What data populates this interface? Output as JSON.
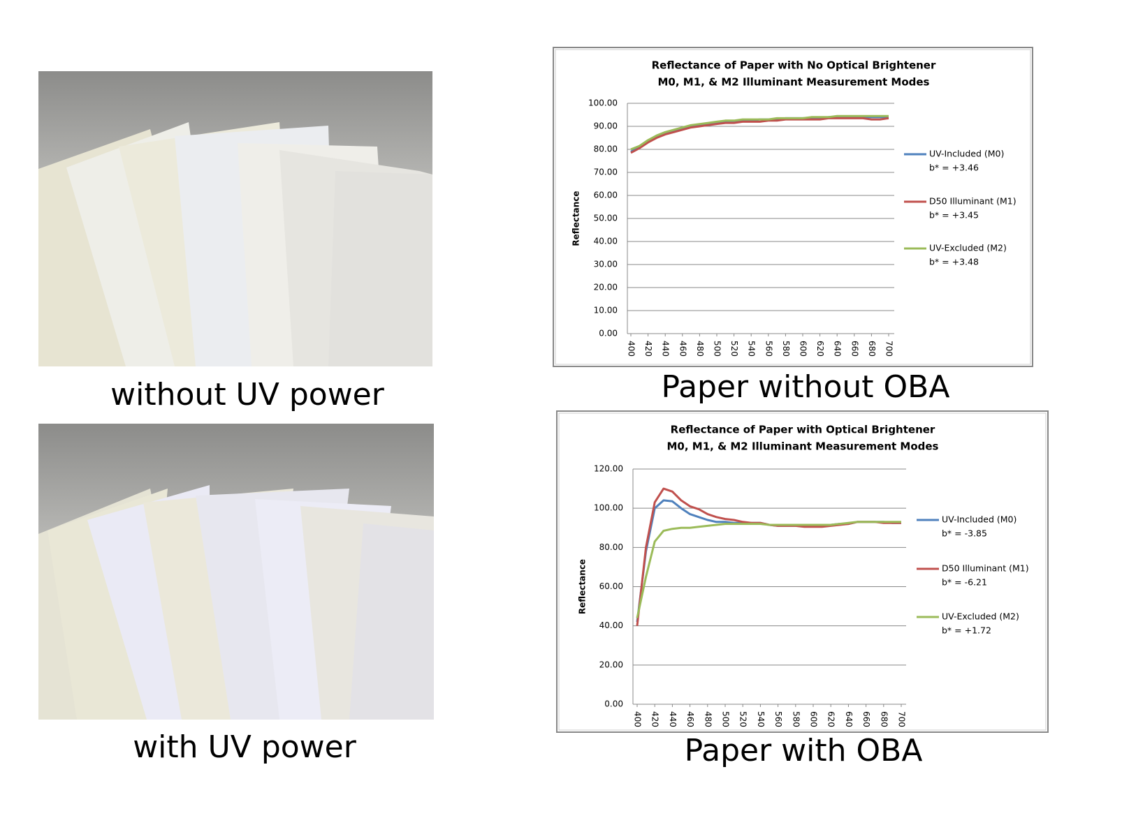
{
  "photos": [
    {
      "caption": "without UV power"
    },
    {
      "caption": "with UV power"
    }
  ],
  "chart_data": [
    {
      "type": "line",
      "title": "Reflectance  of Paper with No  Optical Brightener",
      "subtitle": "M0, M1, & M2 Illuminant Measurement Modes",
      "y_label": "Reflectance",
      "caption": "Paper without OBA",
      "x": [
        400,
        410,
        420,
        430,
        440,
        450,
        460,
        470,
        480,
        490,
        500,
        510,
        520,
        530,
        540,
        550,
        560,
        570,
        580,
        590,
        600,
        610,
        620,
        630,
        640,
        650,
        660,
        670,
        680,
        690,
        700
      ],
      "xlim": [
        400,
        700
      ],
      "xticks": [
        400,
        420,
        440,
        460,
        480,
        500,
        520,
        540,
        560,
        580,
        600,
        620,
        640,
        660,
        680,
        700
      ],
      "ylim": [
        0,
        100
      ],
      "yticks": [
        {
          "value": 0,
          "label": "0.00"
        },
        {
          "value": 10,
          "label": "10.00"
        },
        {
          "value": 20,
          "label": "20.00"
        },
        {
          "value": 30,
          "label": "30.00"
        },
        {
          "value": 40,
          "label": "40.00"
        },
        {
          "value": 50,
          "label": "50.00"
        },
        {
          "value": 60,
          "label": "60.00"
        },
        {
          "value": 70,
          "label": "70.00"
        },
        {
          "value": 80,
          "label": "80.00"
        },
        {
          "value": 90,
          "label": "90.00"
        },
        {
          "value": 100,
          "label": "100.00"
        }
      ],
      "grid": true,
      "legend": "right",
      "series": [
        {
          "name": "UV-Included (M0)",
          "b_star": "b* = +3.46",
          "color": "#4f81bd",
          "values": [
            79,
            81,
            83.5,
            85.5,
            87,
            88,
            89,
            90,
            90.5,
            91,
            91.5,
            92,
            92,
            92.5,
            92.5,
            93,
            93,
            93,
            93.5,
            93.5,
            93.5,
            93.5,
            93.5,
            94,
            94,
            94,
            94,
            94,
            94,
            94,
            94
          ]
        },
        {
          "name": "D50 Illuminant (M1)",
          "b_star": "b* = +3.45",
          "color": "#c0504d",
          "values": [
            78.5,
            80.5,
            83,
            85,
            86.5,
            87.5,
            88.5,
            89.5,
            90,
            90.5,
            91,
            91.5,
            91.5,
            92,
            92,
            92,
            92.5,
            92.5,
            93,
            93,
            93,
            93,
            93,
            93.5,
            93.5,
            93.5,
            93.5,
            93.5,
            93,
            93,
            93.5
          ]
        },
        {
          "name": "UV-Excluded (M2)",
          "b_star": "b* = +3.48",
          "color": "#9bbb59",
          "values": [
            80,
            81.5,
            84,
            86,
            87.5,
            88.5,
            89.5,
            90.5,
            91,
            91.5,
            92,
            92.5,
            92.5,
            93,
            93,
            93,
            93,
            93.5,
            93.5,
            93.5,
            93.5,
            94,
            94,
            94,
            94.5,
            94.5,
            94.5,
            94.5,
            94.5,
            94.5,
            94.5
          ]
        }
      ]
    },
    {
      "type": "line",
      "title": "Reflectance  of Paper with  Optical Brightener",
      "subtitle": "M0, M1, & M2 Illuminant Measurement Modes",
      "y_label": "Reflectance",
      "caption": "Paper with OBA",
      "x": [
        400,
        410,
        420,
        430,
        440,
        450,
        460,
        470,
        480,
        490,
        500,
        510,
        520,
        530,
        540,
        550,
        560,
        570,
        580,
        590,
        600,
        610,
        620,
        630,
        640,
        650,
        660,
        670,
        680,
        690,
        700
      ],
      "xlim": [
        400,
        700
      ],
      "xticks": [
        400,
        420,
        440,
        460,
        480,
        500,
        520,
        540,
        560,
        580,
        600,
        620,
        640,
        660,
        680,
        700
      ],
      "ylim": [
        0,
        120
      ],
      "yticks": [
        {
          "value": 0,
          "label": "0.00"
        },
        {
          "value": 20,
          "label": "20.00"
        },
        {
          "value": 40,
          "label": "40.00"
        },
        {
          "value": 60,
          "label": "60.00"
        },
        {
          "value": 80,
          "label": "80.00"
        },
        {
          "value": 100,
          "label": "100.00"
        },
        {
          "value": 120,
          "label": "120.00"
        }
      ],
      "grid": true,
      "legend": "right",
      "series": [
        {
          "name": "UV-Included (M0)",
          "b_star": "b* = -3.85",
          "color": "#4f81bd",
          "values": [
            42,
            78,
            100,
            104,
            103.5,
            100,
            97,
            95.5,
            94,
            93,
            93,
            92.5,
            92.5,
            92.5,
            92.5,
            91.5,
            91,
            91,
            91,
            91,
            91,
            91,
            91.5,
            92,
            92,
            93,
            93,
            93,
            93,
            92.5,
            92.5
          ]
        },
        {
          "name": "D50 Illuminant (M1)",
          "b_star": "b* = -6.21",
          "color": "#c0504d",
          "values": [
            40,
            80,
            103,
            110,
            108.5,
            104,
            101,
            99.5,
            97,
            95.5,
            94.5,
            94,
            93,
            92.5,
            92.5,
            91.5,
            91,
            91,
            91,
            90.5,
            90.5,
            90.5,
            91,
            91.5,
            92,
            93,
            93,
            93,
            92.5,
            92.5,
            92.5
          ]
        },
        {
          "name": "UV-Excluded (M2)",
          "b_star": "b* = +1.72",
          "color": "#9bbb59",
          "values": [
            44,
            65,
            83,
            88.5,
            89.5,
            90,
            90,
            90.5,
            91,
            91.5,
            92,
            92,
            92,
            92,
            92,
            91.5,
            91.5,
            91.5,
            91.5,
            91.5,
            91.5,
            91.5,
            91.5,
            92,
            92.5,
            93,
            93,
            93,
            93,
            93,
            93
          ]
        }
      ]
    }
  ]
}
